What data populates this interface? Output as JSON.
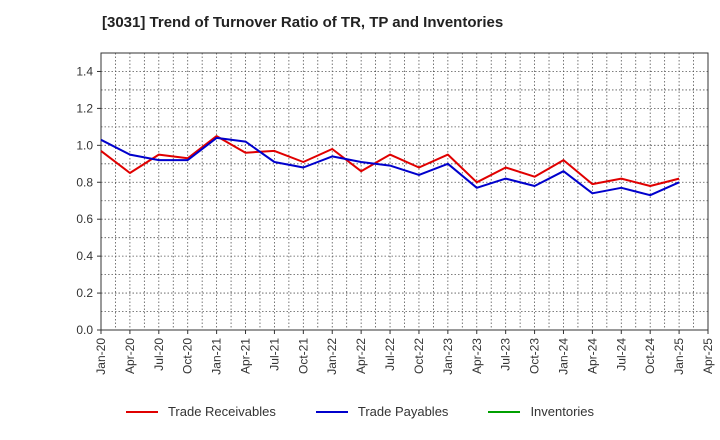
{
  "chart_data": {
    "type": "line",
    "title": "[3031]  Trend of Turnover Ratio of TR, TP and Inventories",
    "xlabel": "",
    "ylabel": "",
    "ylim": [
      0,
      1.5
    ],
    "yticks": [
      "0.0",
      "0.2",
      "0.4",
      "0.6",
      "0.8",
      "1.0",
      "1.2",
      "1.4"
    ],
    "x_tick_labels": [
      "Jan-20",
      "Apr-20",
      "Jul-20",
      "Oct-20",
      "Jan-21",
      "Apr-21",
      "Jul-21",
      "Oct-21",
      "Jan-22",
      "Apr-22",
      "Jul-22",
      "Oct-22",
      "Jan-23",
      "Apr-23",
      "Jul-23",
      "Oct-23",
      "Jan-24",
      "Apr-24",
      "Jul-24",
      "Oct-24",
      "Jan-25",
      "Apr-25"
    ],
    "grid": true,
    "legend_position": "bottom",
    "series": [
      {
        "name": "Trade Receivables",
        "color": "#e00000",
        "values": [
          0.97,
          0.85,
          0.95,
          0.93,
          1.05,
          0.96,
          0.97,
          0.91,
          0.98,
          0.86,
          0.95,
          0.88,
          0.95,
          0.8,
          0.88,
          0.83,
          0.92,
          0.79,
          0.82,
          0.78,
          0.82
        ]
      },
      {
        "name": "Trade Payables",
        "color": "#0000cc",
        "values": [
          1.03,
          0.95,
          0.92,
          0.92,
          1.04,
          1.02,
          0.91,
          0.88,
          0.94,
          0.91,
          0.89,
          0.84,
          0.9,
          0.77,
          0.82,
          0.78,
          0.86,
          0.74,
          0.77,
          0.73,
          0.8
        ]
      },
      {
        "name": "Inventories",
        "color": "#00a000",
        "values": []
      }
    ]
  }
}
